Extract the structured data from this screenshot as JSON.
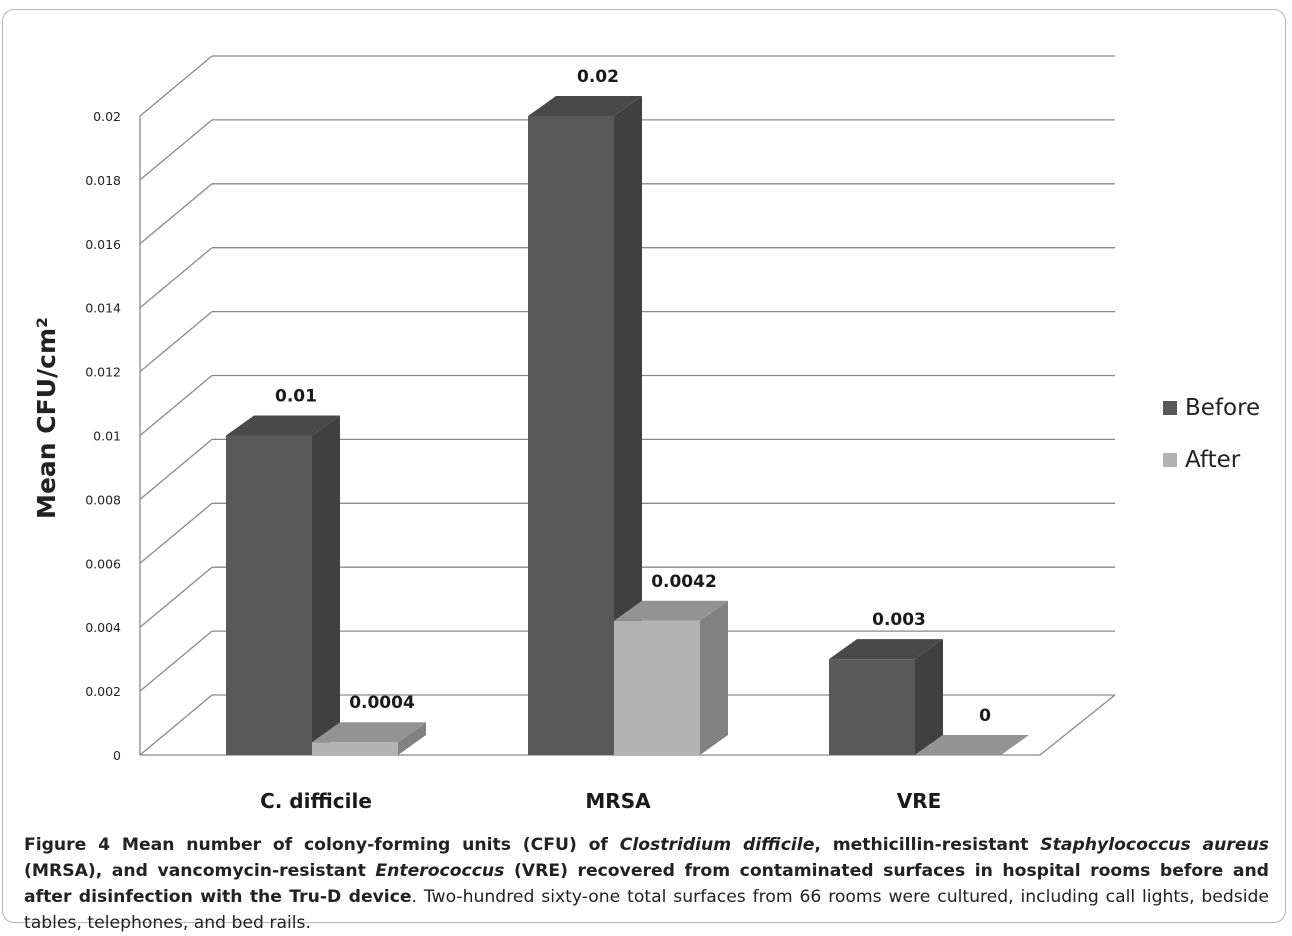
{
  "chart_data": {
    "type": "bar",
    "categories": [
      "C. difficile",
      "MRSA",
      "VRE"
    ],
    "series": [
      {
        "name": "Before",
        "values": [
          0.01,
          0.02,
          0.003
        ],
        "labels": [
          "0.01",
          "0.02",
          "0.003"
        ],
        "color": "#595959"
      },
      {
        "name": "After",
        "values": [
          0.0004,
          0.0042,
          0
        ],
        "labels": [
          "0.0004",
          "0.0042",
          "0"
        ],
        "color": "#b3b3b3"
      }
    ],
    "ylabel": "Mean CFU/cm²",
    "ylim": [
      0,
      0.02
    ],
    "yticks": [
      "0",
      "0.002",
      "0.004",
      "0.006",
      "0.008",
      "0.01",
      "0.012",
      "0.014",
      "0.016",
      "0.018",
      "0.02"
    ],
    "grid": true,
    "legend_position": "right",
    "style": "3d"
  },
  "caption": {
    "label": "Figure 4",
    "bold_runs": [
      " Mean number of colony-forming units (CFU) of ",
      "Clostridium difficile",
      ", methicillin-resistant ",
      "Staphylococcus aureus",
      " (MRSA), and vancomycin-resistant ",
      "Enterococcus",
      " (VRE) recovered from contaminated surfaces in hospital rooms before and after disinfection with the Tru-D device"
    ],
    "rest": ". Two-hundred sixty-one total surfaces from 66 rooms were cultured, including call lights, bedside tables, telephones, and bed rails."
  }
}
